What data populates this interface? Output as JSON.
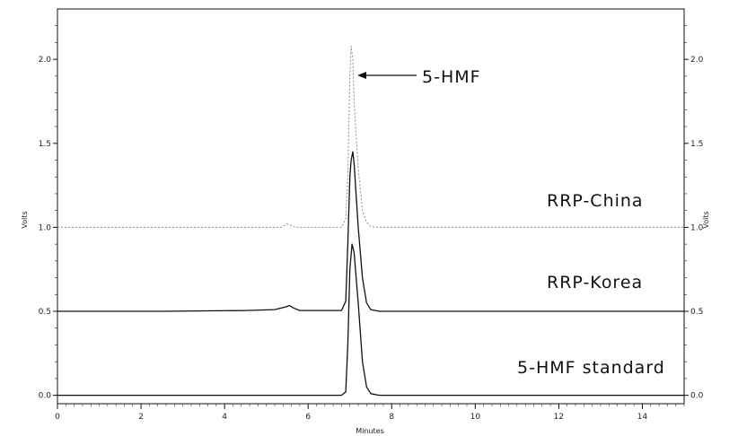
{
  "chart_data": {
    "type": "line",
    "title": "",
    "xlabel": "Minutes",
    "ylabel": "Volts",
    "xlim": [
      0,
      15
    ],
    "ylim": [
      -0.05,
      2.3
    ],
    "x_ticks": [
      "0",
      "2",
      "4",
      "6",
      "8",
      "10",
      "12",
      "14"
    ],
    "y_ticks": [
      "0.0",
      "0.5",
      "1.0",
      "1.5",
      "2.0"
    ],
    "grid": false,
    "series": [
      {
        "name": "5-HMF standard",
        "baseline": 0.0,
        "style": "solid",
        "color": "#111111",
        "points": [
          [
            0,
            0
          ],
          [
            6.8,
            0
          ],
          [
            6.9,
            0.02
          ],
          [
            6.95,
            0.3
          ],
          [
            7.0,
            0.75
          ],
          [
            7.05,
            0.9
          ],
          [
            7.1,
            0.85
          ],
          [
            7.2,
            0.55
          ],
          [
            7.3,
            0.2
          ],
          [
            7.4,
            0.05
          ],
          [
            7.5,
            0.01
          ],
          [
            7.7,
            0
          ],
          [
            15,
            0
          ]
        ]
      },
      {
        "name": "RRP-Korea",
        "baseline": 0.5,
        "style": "solid",
        "color": "#111111",
        "points": [
          [
            0,
            0.5
          ],
          [
            2.5,
            0.5
          ],
          [
            4.5,
            0.505
          ],
          [
            5.2,
            0.51
          ],
          [
            5.45,
            0.525
          ],
          [
            5.55,
            0.535
          ],
          [
            5.65,
            0.52
          ],
          [
            5.8,
            0.505
          ],
          [
            6.8,
            0.505
          ],
          [
            6.9,
            0.56
          ],
          [
            6.95,
            0.9
          ],
          [
            7.0,
            1.3
          ],
          [
            7.03,
            1.4
          ],
          [
            7.07,
            1.45
          ],
          [
            7.1,
            1.38
          ],
          [
            7.2,
            1.0
          ],
          [
            7.3,
            0.7
          ],
          [
            7.4,
            0.55
          ],
          [
            7.5,
            0.51
          ],
          [
            7.7,
            0.5
          ],
          [
            15,
            0.5
          ]
        ]
      },
      {
        "name": "RRP-China",
        "baseline": 1.0,
        "style": "dotted",
        "color": "#8a8a8a",
        "points": [
          [
            0,
            1.0
          ],
          [
            5.35,
            1.0
          ],
          [
            5.5,
            1.02
          ],
          [
            5.6,
            1.01
          ],
          [
            5.7,
            1.0
          ],
          [
            6.8,
            1.0
          ],
          [
            6.9,
            1.05
          ],
          [
            6.95,
            1.3
          ],
          [
            7.0,
            1.9
          ],
          [
            7.03,
            2.08
          ],
          [
            7.07,
            2.0
          ],
          [
            7.1,
            1.75
          ],
          [
            7.2,
            1.35
          ],
          [
            7.3,
            1.1
          ],
          [
            7.4,
            1.03
          ],
          [
            7.5,
            1.005
          ],
          [
            7.7,
            1.0
          ],
          [
            15,
            1.0
          ]
        ]
      }
    ],
    "annotations": [
      {
        "text": "5-HMF",
        "arrow": true
      },
      {
        "text": "RRP-China"
      },
      {
        "text": "RRP-Korea"
      },
      {
        "text": "5-HMF standard"
      }
    ],
    "legend": "none"
  }
}
